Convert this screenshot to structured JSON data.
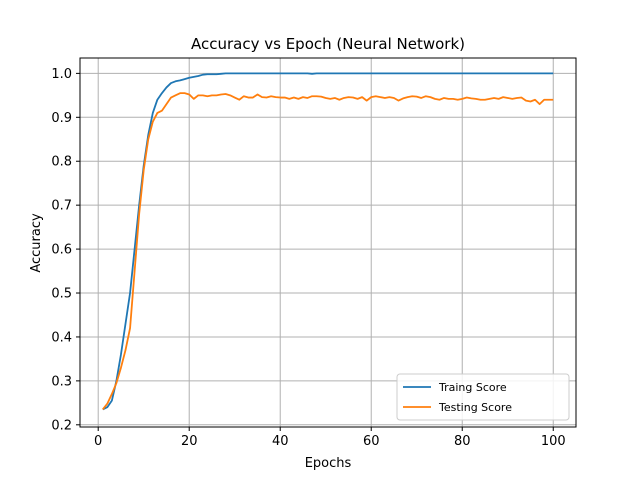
{
  "chart_data": {
    "type": "line",
    "title": "Accuracy vs Epoch (Neural Network)",
    "xlabel": "Epochs",
    "ylabel": "Accuracy",
    "xlim": [
      -4,
      105
    ],
    "ylim": [
      0.195,
      1.035
    ],
    "xticks": [
      0,
      20,
      40,
      60,
      80,
      100
    ],
    "yticks": [
      0.2,
      0.3,
      0.4,
      0.5,
      0.6,
      0.7,
      0.8,
      0.9,
      1.0
    ],
    "ytick_labels": [
      "0.2",
      "0.3",
      "0.4",
      "0.5",
      "0.6",
      "0.7",
      "0.8",
      "0.9",
      "1.0"
    ],
    "grid": true,
    "legend_position": "lower-right",
    "x": [
      1,
      2,
      3,
      4,
      5,
      6,
      7,
      8,
      9,
      10,
      11,
      12,
      13,
      14,
      15,
      16,
      17,
      18,
      19,
      20,
      21,
      22,
      23,
      24,
      25,
      26,
      27,
      28,
      29,
      30,
      31,
      32,
      33,
      34,
      35,
      36,
      37,
      38,
      39,
      40,
      41,
      42,
      43,
      44,
      45,
      46,
      47,
      48,
      49,
      50,
      51,
      52,
      53,
      54,
      55,
      56,
      57,
      58,
      59,
      60,
      61,
      62,
      63,
      64,
      65,
      66,
      67,
      68,
      69,
      70,
      71,
      72,
      73,
      74,
      75,
      76,
      77,
      78,
      79,
      80,
      81,
      82,
      83,
      84,
      85,
      86,
      87,
      88,
      89,
      90,
      91,
      92,
      93,
      94,
      95,
      96,
      97,
      98,
      99,
      100
    ],
    "series": [
      {
        "name": "Traing Score",
        "color": "#1f77b4",
        "values": [
          0.235,
          0.24,
          0.255,
          0.3,
          0.36,
          0.43,
          0.5,
          0.6,
          0.7,
          0.79,
          0.86,
          0.91,
          0.94,
          0.955,
          0.968,
          0.978,
          0.982,
          0.984,
          0.987,
          0.99,
          0.992,
          0.994,
          0.997,
          0.998,
          0.998,
          0.998,
          0.999,
          1.0,
          1.0,
          1.0,
          1.0,
          1.0,
          1.0,
          1.0,
          1.0,
          1.0,
          1.0,
          1.0,
          1.0,
          1.0,
          1.0,
          1.0,
          1.0,
          1.0,
          1.0,
          1.0,
          0.999,
          1.0,
          1.0,
          1.0,
          1.0,
          1.0,
          1.0,
          1.0,
          1.0,
          1.0,
          1.0,
          1.0,
          1.0,
          1.0,
          1.0,
          1.0,
          1.0,
          1.0,
          1.0,
          1.0,
          1.0,
          1.0,
          1.0,
          1.0,
          1.0,
          1.0,
          1.0,
          1.0,
          1.0,
          1.0,
          1.0,
          1.0,
          1.0,
          1.0,
          1.0,
          1.0,
          1.0,
          1.0,
          1.0,
          1.0,
          1.0,
          1.0,
          1.0,
          1.0,
          1.0,
          1.0,
          1.0,
          1.0,
          1.0,
          1.0,
          1.0,
          1.0,
          1.0,
          1.0
        ]
      },
      {
        "name": "Testing Score",
        "color": "#ff7f0e",
        "values": [
          0.235,
          0.248,
          0.27,
          0.295,
          0.33,
          0.37,
          0.42,
          0.55,
          0.68,
          0.78,
          0.85,
          0.89,
          0.91,
          0.915,
          0.93,
          0.945,
          0.95,
          0.955,
          0.955,
          0.952,
          0.942,
          0.95,
          0.95,
          0.948,
          0.95,
          0.95,
          0.952,
          0.953,
          0.95,
          0.945,
          0.94,
          0.948,
          0.945,
          0.945,
          0.952,
          0.946,
          0.945,
          0.948,
          0.946,
          0.945,
          0.945,
          0.942,
          0.945,
          0.942,
          0.946,
          0.944,
          0.948,
          0.948,
          0.947,
          0.944,
          0.942,
          0.944,
          0.94,
          0.944,
          0.946,
          0.945,
          0.942,
          0.946,
          0.938,
          0.946,
          0.948,
          0.946,
          0.944,
          0.946,
          0.944,
          0.938,
          0.943,
          0.946,
          0.948,
          0.947,
          0.944,
          0.948,
          0.946,
          0.942,
          0.94,
          0.944,
          0.942,
          0.942,
          0.94,
          0.942,
          0.945,
          0.943,
          0.942,
          0.94,
          0.94,
          0.942,
          0.944,
          0.942,
          0.946,
          0.944,
          0.942,
          0.944,
          0.945,
          0.938,
          0.936,
          0.94,
          0.93,
          0.94,
          0.94,
          0.94
        ]
      }
    ]
  }
}
